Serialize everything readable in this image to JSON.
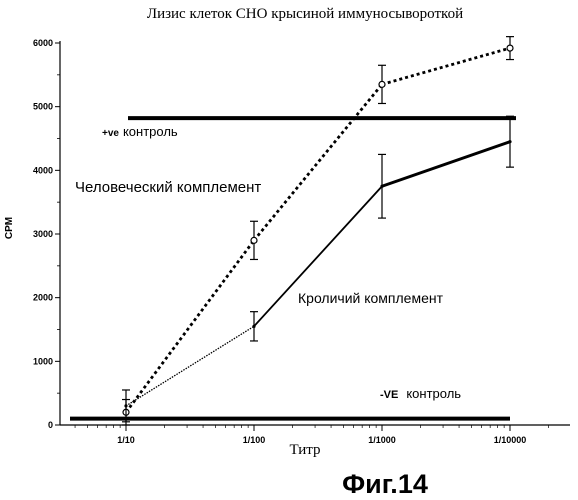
{
  "figure_label": "Фиг.14",
  "chart_data": {
    "type": "line",
    "title": "Лизис клеток СНО крысиной иммуносывороткой",
    "xlabel": "Титр",
    "ylabel": "CPM",
    "x_scale": "log",
    "categories": [
      "1/10",
      "1/100",
      "1/1000",
      "1/10000"
    ],
    "ylim": [
      0,
      6000
    ],
    "yticks": [
      "0",
      "1000",
      "2000",
      "3000",
      "4000",
      "5000",
      "6000"
    ],
    "grid": false,
    "series": [
      {
        "name": "Человеческий комплемент",
        "style": "dotted-thick",
        "values": [
          200,
          2900,
          5350,
          5920
        ],
        "errors": [
          200,
          300,
          300,
          180
        ]
      },
      {
        "name": "Кроличий комплемент",
        "style": "solid-thin-to-thick",
        "values": [
          300,
          1550,
          3750,
          4450
        ],
        "errors": [
          250,
          230,
          500,
          400
        ]
      }
    ],
    "reference_lines": [
      {
        "label": "+ve контроль",
        "value": 4820
      },
      {
        "label": "-VE контроль",
        "value": 100
      }
    ]
  }
}
